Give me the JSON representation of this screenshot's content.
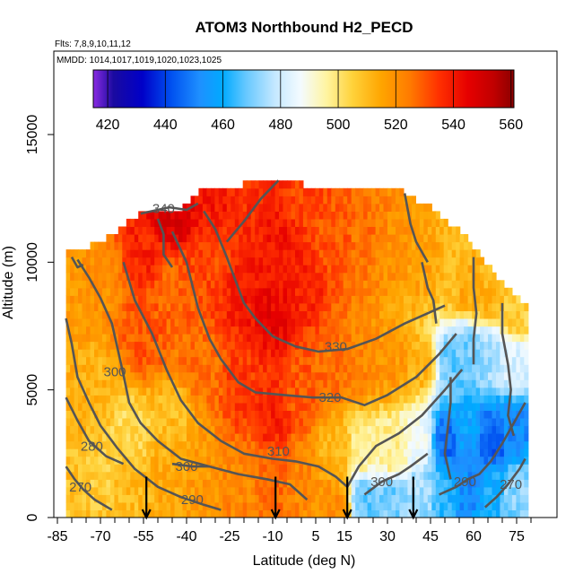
{
  "chart_data": {
    "type": "heatmap",
    "title": "ATOM3 Northbound H2_PECD",
    "flights_note": "Flts: 7,8,9,10,11,12",
    "dates_note": "MMDD: 1014,1017,1019,1020,1023,1025",
    "xlabel": "Latitude (deg N)",
    "ylabel": "Altitude (m)",
    "xlim": [
      -85,
      85
    ],
    "ylim": [
      0,
      17500
    ],
    "x_ticks": [
      "-85",
      "-70",
      "-55",
      "-40",
      "-25",
      "-10",
      "5",
      "15",
      "30",
      "45",
      "60",
      "75"
    ],
    "x_tick_values": [
      -85,
      -70,
      -55,
      -40,
      -25,
      -10,
      5,
      15,
      30,
      45,
      60,
      75
    ],
    "y_ticks": [
      "0",
      "5000",
      "10000",
      "15000"
    ],
    "y_tick_values": [
      0,
      5000,
      10000,
      15000
    ],
    "colorbar": {
      "ticks": [
        "420",
        "440",
        "460",
        "480",
        "500",
        "520",
        "540",
        "560"
      ],
      "tick_values": [
        420,
        440,
        460,
        480,
        500,
        520,
        540,
        560
      ],
      "range": [
        415,
        561
      ],
      "stops": [
        {
          "v": 415,
          "color": "#8a2be2"
        },
        {
          "v": 422,
          "color": "#1a0aa0"
        },
        {
          "v": 432,
          "color": "#0000c8"
        },
        {
          "v": 442,
          "color": "#0050f0"
        },
        {
          "v": 452,
          "color": "#1e90ff"
        },
        {
          "v": 460,
          "color": "#00aaff"
        },
        {
          "v": 468,
          "color": "#66c8ff"
        },
        {
          "v": 478,
          "color": "#c4e8ff"
        },
        {
          "v": 487,
          "color": "#f4fbff"
        },
        {
          "v": 496,
          "color": "#fff4a0"
        },
        {
          "v": 505,
          "color": "#ffd23a"
        },
        {
          "v": 515,
          "color": "#ffa500"
        },
        {
          "v": 525,
          "color": "#ff7a00"
        },
        {
          "v": 535,
          "color": "#ff3000"
        },
        {
          "v": 545,
          "color": "#e60000"
        },
        {
          "v": 554,
          "color": "#c00000"
        },
        {
          "v": 561,
          "color": "#8b0000"
        }
      ]
    },
    "anchors": [
      {
        "lat": -80,
        "alt": 1000,
        "v": 509
      },
      {
        "lat": -80,
        "alt": 5000,
        "v": 513
      },
      {
        "lat": -80,
        "alt": 9000,
        "v": 518
      },
      {
        "lat": -70,
        "alt": 1500,
        "v": 506
      },
      {
        "lat": -70,
        "alt": 5000,
        "v": 512
      },
      {
        "lat": -70,
        "alt": 9500,
        "v": 520
      },
      {
        "lat": -60,
        "alt": 1000,
        "v": 510
      },
      {
        "lat": -60,
        "alt": 3500,
        "v": 503
      },
      {
        "lat": -55,
        "alt": 7000,
        "v": 530
      },
      {
        "lat": -55,
        "alt": 10500,
        "v": 538
      },
      {
        "lat": -45,
        "alt": 1500,
        "v": 514
      },
      {
        "lat": -45,
        "alt": 4000,
        "v": 510
      },
      {
        "lat": -45,
        "alt": 9000,
        "v": 528
      },
      {
        "lat": -45,
        "alt": 12000,
        "v": 548
      },
      {
        "lat": -35,
        "alt": 2000,
        "v": 518
      },
      {
        "lat": -35,
        "alt": 6000,
        "v": 526
      },
      {
        "lat": -30,
        "alt": 10000,
        "v": 532
      },
      {
        "lat": -30,
        "alt": 12500,
        "v": 540
      },
      {
        "lat": -20,
        "alt": 1500,
        "v": 522
      },
      {
        "lat": -20,
        "alt": 5000,
        "v": 534
      },
      {
        "lat": -20,
        "alt": 9000,
        "v": 540
      },
      {
        "lat": -20,
        "alt": 12500,
        "v": 536
      },
      {
        "lat": -10,
        "alt": 1500,
        "v": 528
      },
      {
        "lat": -10,
        "alt": 4000,
        "v": 538
      },
      {
        "lat": -10,
        "alt": 8000,
        "v": 544
      },
      {
        "lat": -8,
        "alt": 11000,
        "v": 540
      },
      {
        "lat": -8,
        "alt": 13500,
        "v": 536
      },
      {
        "lat": 0,
        "alt": 1500,
        "v": 522
      },
      {
        "lat": 0,
        "alt": 5000,
        "v": 530
      },
      {
        "lat": 0,
        "alt": 9000,
        "v": 538
      },
      {
        "lat": 0,
        "alt": 12500,
        "v": 532
      },
      {
        "lat": 12,
        "alt": 500,
        "v": 520
      },
      {
        "lat": 12,
        "alt": 2500,
        "v": 512
      },
      {
        "lat": 12,
        "alt": 6000,
        "v": 526
      },
      {
        "lat": 12,
        "alt": 11000,
        "v": 530
      },
      {
        "lat": 22,
        "alt": 700,
        "v": 468
      },
      {
        "lat": 22,
        "alt": 2500,
        "v": 495
      },
      {
        "lat": 22,
        "alt": 6000,
        "v": 522
      },
      {
        "lat": 22,
        "alt": 11000,
        "v": 526
      },
      {
        "lat": 32,
        "alt": 800,
        "v": 470
      },
      {
        "lat": 32,
        "alt": 2500,
        "v": 498
      },
      {
        "lat": 32,
        "alt": 6000,
        "v": 518
      },
      {
        "lat": 32,
        "alt": 10500,
        "v": 520
      },
      {
        "lat": 42,
        "alt": 1000,
        "v": 475
      },
      {
        "lat": 42,
        "alt": 3000,
        "v": 488
      },
      {
        "lat": 42,
        "alt": 6000,
        "v": 512
      },
      {
        "lat": 42,
        "alt": 10000,
        "v": 516
      },
      {
        "lat": 50,
        "alt": 1000,
        "v": 462
      },
      {
        "lat": 50,
        "alt": 3000,
        "v": 446
      },
      {
        "lat": 52,
        "alt": 6000,
        "v": 468
      },
      {
        "lat": 52,
        "alt": 9500,
        "v": 510
      },
      {
        "lat": 58,
        "alt": 1000,
        "v": 452
      },
      {
        "lat": 58,
        "alt": 3500,
        "v": 458
      },
      {
        "lat": 58,
        "alt": 6500,
        "v": 470
      },
      {
        "lat": 58,
        "alt": 9000,
        "v": 514
      },
      {
        "lat": 66,
        "alt": 1000,
        "v": 460
      },
      {
        "lat": 66,
        "alt": 3000,
        "v": 442
      },
      {
        "lat": 66,
        "alt": 6500,
        "v": 475
      },
      {
        "lat": 66,
        "alt": 8500,
        "v": 512
      },
      {
        "lat": 74,
        "alt": 1000,
        "v": 472
      },
      {
        "lat": 74,
        "alt": 3500,
        "v": 452
      },
      {
        "lat": 74,
        "alt": 6000,
        "v": 482
      },
      {
        "lat": 74,
        "alt": 8000,
        "v": 506
      }
    ],
    "domain": [
      {
        "lat": -82,
        "top": 10400
      },
      {
        "lat": -75,
        "top": 10400
      },
      {
        "lat": -68,
        "top": 10800
      },
      {
        "lat": -62,
        "top": 11300
      },
      {
        "lat": -55,
        "top": 11800
      },
      {
        "lat": -48,
        "top": 12000
      },
      {
        "lat": -41,
        "top": 12000
      },
      {
        "lat": -34,
        "top": 12900
      },
      {
        "lat": -27,
        "top": 12900
      },
      {
        "lat": -20,
        "top": 12900
      },
      {
        "lat": -14,
        "top": 13200
      },
      {
        "lat": -10,
        "top": 13200
      },
      {
        "lat": -5,
        "top": 13200
      },
      {
        "lat": 0,
        "top": 12900
      },
      {
        "lat": 5,
        "top": 12900
      },
      {
        "lat": 12,
        "top": 12900
      },
      {
        "lat": 18,
        "top": 12900
      },
      {
        "lat": 24,
        "top": 12900
      },
      {
        "lat": 30,
        "top": 12900
      },
      {
        "lat": 36,
        "top": 12600
      },
      {
        "lat": 40,
        "top": 12300
      },
      {
        "lat": 45,
        "top": 12000
      },
      {
        "lat": 50,
        "top": 11500
      },
      {
        "lat": 54,
        "top": 11200
      },
      {
        "lat": 58,
        "top": 10800
      },
      {
        "lat": 62,
        "top": 10200
      },
      {
        "lat": 66,
        "top": 9600
      },
      {
        "lat": 70,
        "top": 9100
      },
      {
        "lat": 74,
        "top": 8600
      },
      {
        "lat": 78,
        "top": 8200
      }
    ],
    "contours": [
      {
        "label": "340",
        "label_at": [
          -48,
          12100
        ],
        "points": [
          [
            -56,
            11900
          ],
          [
            -52,
            12000
          ],
          [
            -46,
            12150
          ],
          [
            -40,
            12050
          ],
          [
            -36,
            12300
          ]
        ]
      },
      {
        "label": "330",
        "label_at": [
          12,
          6700
        ],
        "points": [
          [
            -34,
            12000
          ],
          [
            -30,
            11300
          ],
          [
            -26,
            10200
          ],
          [
            -23,
            9300
          ],
          [
            -20,
            8400
          ],
          [
            -16,
            7800
          ],
          [
            -10,
            7100
          ],
          [
            -2,
            6700
          ],
          [
            6,
            6500
          ],
          [
            16,
            6600
          ],
          [
            26,
            7000
          ],
          [
            36,
            7600
          ],
          [
            44,
            8000
          ],
          [
            50,
            8300
          ]
        ]
      },
      {
        "label": "320",
        "label_at": [
          10,
          4700
        ],
        "points": [
          [
            -45,
            11200
          ],
          [
            -40,
            10000
          ],
          [
            -36,
            8200
          ],
          [
            -32,
            7000
          ],
          [
            -28,
            6200
          ],
          [
            -22,
            5300
          ],
          [
            -16,
            4900
          ],
          [
            -6,
            4800
          ],
          [
            4,
            4700
          ],
          [
            14,
            4700
          ],
          [
            22,
            4400
          ],
          [
            30,
            4800
          ],
          [
            40,
            5500
          ],
          [
            48,
            6400
          ],
          [
            54,
            7200
          ]
        ]
      },
      {
        "label": "310",
        "label_at": [
          -8,
          2600
        ],
        "points": [
          [
            -62,
            10000
          ],
          [
            -58,
            8500
          ],
          [
            -52,
            7200
          ],
          [
            -47,
            5800
          ],
          [
            -42,
            4600
          ],
          [
            -36,
            3700
          ],
          [
            -28,
            3000
          ],
          [
            -20,
            2500
          ],
          [
            -10,
            2300
          ],
          [
            -2,
            2200
          ],
          [
            6,
            2000
          ],
          [
            12,
            1600
          ],
          [
            16,
            1200
          ],
          [
            20,
            2000
          ],
          [
            26,
            2800
          ],
          [
            34,
            3300
          ],
          [
            42,
            4000
          ],
          [
            50,
            5000
          ],
          [
            56,
            5800
          ]
        ]
      },
      {
        "label": "300",
        "label_at": [
          -65,
          5700
        ],
        "points": [
          [
            -78,
            10100
          ],
          [
            -74,
            9400
          ],
          [
            -70,
            8600
          ],
          [
            -66,
            7600
          ],
          [
            -64,
            6600
          ],
          [
            -62,
            5600
          ],
          [
            -60,
            4500
          ],
          [
            -56,
            3700
          ],
          [
            -50,
            3000
          ],
          [
            -42,
            2300
          ],
          [
            -32,
            2000
          ],
          [
            -22,
            1700
          ],
          [
            -12,
            1500
          ],
          [
            -4,
            1300
          ],
          [
            2,
            700
          ]
        ]
      },
      {
        "label": "300",
        "label_at": [
          -40,
          2000
        ],
        "points": [
          [
            -45,
            2100
          ],
          [
            -38,
            2000
          ],
          [
            -32,
            2000
          ]
        ]
      },
      {
        "label": "300",
        "label_at": [
          28,
          1400
        ],
        "points": [
          [
            22,
            900
          ],
          [
            28,
            1400
          ],
          [
            34,
            1700
          ],
          [
            38,
            2000
          ],
          [
            44,
            2500
          ]
        ]
      },
      {
        "label": "290",
        "label_at": [
          -38,
          700
        ],
        "points": [
          [
            -82,
            7800
          ],
          [
            -80,
            6800
          ],
          [
            -78,
            5500
          ],
          [
            -74,
            4500
          ],
          [
            -70,
            3600
          ],
          [
            -64,
            2700
          ],
          [
            -58,
            1900
          ],
          [
            -50,
            1200
          ],
          [
            -42,
            800
          ],
          [
            -34,
            500
          ],
          [
            -28,
            300
          ]
        ]
      },
      {
        "label": "290",
        "label_at": [
          57,
          1400
        ],
        "points": [
          [
            48,
            900
          ],
          [
            54,
            1200
          ],
          [
            58,
            1500
          ],
          [
            62,
            1700
          ],
          [
            66,
            2200
          ],
          [
            70,
            2900
          ],
          [
            74,
            3700
          ],
          [
            78,
            4500
          ]
        ]
      },
      {
        "label": "280",
        "label_at": [
          -73,
          2800
        ],
        "points": [
          [
            -82,
            4700
          ],
          [
            -78,
            3800
          ],
          [
            -74,
            3000
          ],
          [
            -68,
            2400
          ],
          [
            -62,
            2100
          ]
        ]
      },
      {
        "label": "270",
        "label_at": [
          -77,
          1200
        ],
        "points": [
          [
            -82,
            2000
          ],
          [
            -79,
            1500
          ],
          [
            -76,
            1100
          ],
          [
            -72,
            700
          ],
          [
            -66,
            300
          ]
        ]
      },
      {
        "label": "270",
        "label_at": [
          73,
          1300
        ],
        "points": [
          [
            64,
            400
          ],
          [
            68,
            800
          ],
          [
            72,
            1300
          ],
          [
            76,
            1900
          ],
          [
            78,
            2300
          ]
        ]
      },
      {
        "points": [
          [
            -8,
            13200
          ],
          [
            -14,
            12500
          ],
          [
            -20,
            11600
          ],
          [
            -26,
            10800
          ]
        ]
      },
      {
        "points": [
          [
            36,
            12700
          ],
          [
            38,
            11500
          ],
          [
            40,
            10800
          ],
          [
            44,
            10000
          ]
        ]
      },
      {
        "points": [
          [
            60,
            10200
          ],
          [
            60,
            9000
          ],
          [
            61,
            8000
          ],
          [
            60,
            7000
          ],
          [
            60,
            6000
          ]
        ]
      },
      {
        "points": [
          [
            52,
            5500
          ],
          [
            52,
            4500
          ],
          [
            51,
            3500
          ],
          [
            50,
            2500
          ],
          [
            52,
            1500
          ]
        ]
      },
      {
        "points": [
          [
            70,
            8400
          ],
          [
            70,
            7200
          ],
          [
            72,
            6000
          ],
          [
            73,
            5000
          ],
          [
            72,
            4000
          ],
          [
            74,
            3200
          ]
        ]
      },
      {
        "points": [
          [
            42,
            10000
          ],
          [
            44,
            9000
          ],
          [
            46,
            8500
          ],
          [
            47,
            7600
          ]
        ]
      },
      {
        "points": [
          [
            -80,
            10200
          ],
          [
            -78,
            9800
          ],
          [
            -76,
            9900
          ]
        ]
      },
      {
        "points": [
          [
            -50,
            11700
          ],
          [
            -48,
            11100
          ],
          [
            -48,
            10300
          ],
          [
            -45,
            9800
          ]
        ]
      }
    ],
    "arrows": [
      {
        "lat": -54,
        "alt": 500
      },
      {
        "lat": -9,
        "alt": 500
      },
      {
        "lat": 16,
        "alt": 500
      },
      {
        "lat": 39,
        "alt": 500
      }
    ]
  }
}
